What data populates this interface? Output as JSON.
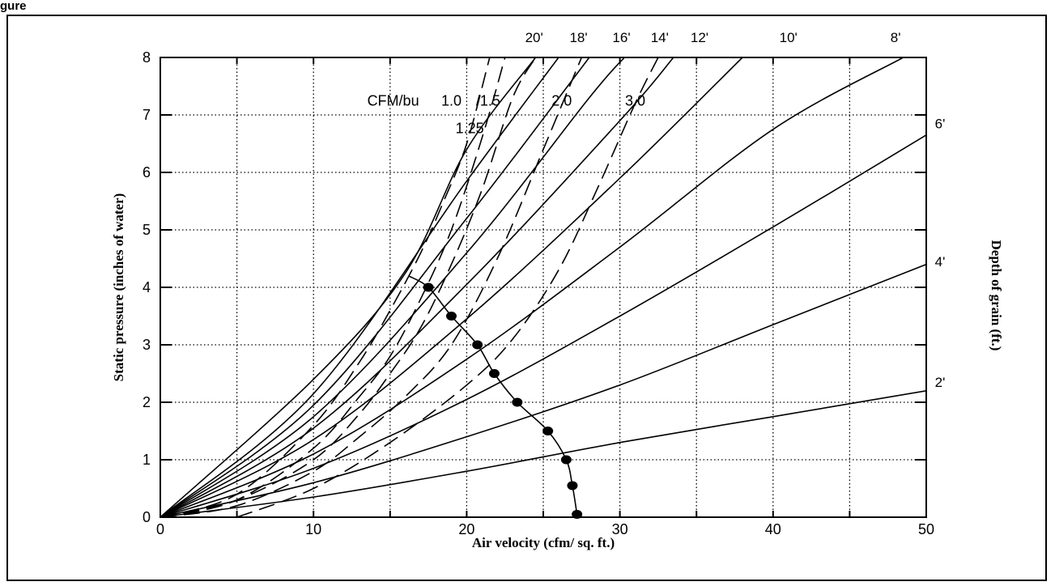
{
  "figure_label": "gure",
  "chart_data": {
    "type": "line",
    "xlabel": "Air velocity (cfm/ sq. ft.)",
    "ylabel": "Static pressure (inches of water)",
    "y2label": "Depth of grain (ft.)",
    "xlim": [
      0,
      50
    ],
    "ylim": [
      0,
      8
    ],
    "xticks": [
      0,
      10,
      20,
      30,
      40,
      50
    ],
    "yticks": [
      0,
      1,
      2,
      3,
      4,
      5,
      6,
      7,
      8
    ],
    "grid": true,
    "depth_series": [
      {
        "name": "2'",
        "depth": 2,
        "points": [
          [
            0,
            0
          ],
          [
            10,
            0.35
          ],
          [
            20,
            0.8
          ],
          [
            30,
            1.3
          ],
          [
            40,
            1.75
          ],
          [
            50,
            2.2
          ]
        ]
      },
      {
        "name": "4'",
        "depth": 4,
        "points": [
          [
            0,
            0
          ],
          [
            10,
            0.6
          ],
          [
            20,
            1.4
          ],
          [
            30,
            2.3
          ],
          [
            40,
            3.35
          ],
          [
            50,
            4.4
          ]
        ]
      },
      {
        "name": "6'",
        "depth": 6,
        "points": [
          [
            0,
            0
          ],
          [
            10,
            0.85
          ],
          [
            20,
            2.05
          ],
          [
            30,
            3.5
          ],
          [
            40,
            5.05
          ],
          [
            50,
            6.65
          ]
        ]
      },
      {
        "name": "8'",
        "depth": 8,
        "points": [
          [
            0,
            0
          ],
          [
            10,
            1.1
          ],
          [
            20,
            2.75
          ],
          [
            30,
            4.7
          ],
          [
            40,
            6.75
          ],
          [
            48.5,
            8
          ]
        ]
      },
      {
        "name": "10'",
        "depth": 10,
        "points": [
          [
            0,
            0
          ],
          [
            10,
            1.35
          ],
          [
            20,
            3.45
          ],
          [
            30,
            5.9
          ],
          [
            38,
            8
          ]
        ]
      },
      {
        "name": "12'",
        "depth": 12,
        "points": [
          [
            0,
            0
          ],
          [
            10,
            1.55
          ],
          [
            20,
            4.05
          ],
          [
            30,
            6.9
          ],
          [
            33.5,
            8
          ]
        ]
      },
      {
        "name": "14'",
        "depth": 14,
        "points": [
          [
            0,
            0
          ],
          [
            10,
            1.75
          ],
          [
            20,
            4.6
          ],
          [
            28,
            7.3
          ],
          [
            30.3,
            8
          ]
        ]
      },
      {
        "name": "16'",
        "depth": 16,
        "points": [
          [
            0,
            0
          ],
          [
            10,
            1.95
          ],
          [
            20,
            5.2
          ],
          [
            28,
            8
          ]
        ]
      },
      {
        "name": "18'",
        "depth": 18,
        "points": [
          [
            0,
            0
          ],
          [
            10,
            2.15
          ],
          [
            20,
            5.85
          ],
          [
            26,
            8
          ]
        ]
      },
      {
        "name": "20'",
        "depth": 20,
        "points": [
          [
            0,
            0
          ],
          [
            10,
            2.4
          ],
          [
            16,
            4.25
          ],
          [
            20,
            6.4
          ],
          [
            24.5,
            8
          ]
        ]
      }
    ],
    "depth_labels": [
      {
        "text": "20'",
        "x": 24.4,
        "y": 8.35
      },
      {
        "text": "18'",
        "x": 27.3,
        "y": 8.35
      },
      {
        "text": "16'",
        "x": 30.1,
        "y": 8.35
      },
      {
        "text": "14'",
        "x": 32.6,
        "y": 8.35
      },
      {
        "text": "12'",
        "x": 35.2,
        "y": 8.35
      },
      {
        "text": "10'",
        "x": 41.0,
        "y": 8.35
      },
      {
        "text": "8'",
        "x": 48.0,
        "y": 8.35
      },
      {
        "text": "6'",
        "x": 50.9,
        "y": 6.85
      },
      {
        "text": "4'",
        "x": 50.9,
        "y": 4.45
      },
      {
        "text": "2'",
        "x": 50.9,
        "y": 2.35
      }
    ],
    "cfm_series": [
      {
        "name": "1.0",
        "cfm_per_bu": 1.0,
        "points": [
          [
            0,
            0
          ],
          [
            5,
            0.4
          ],
          [
            10,
            1.6
          ],
          [
            13,
            2.7
          ],
          [
            15,
            3.6
          ],
          [
            17,
            4.6
          ],
          [
            18.5,
            5.5
          ],
          [
            20,
            6.5
          ],
          [
            21.5,
            8
          ]
        ]
      },
      {
        "name": "1.25",
        "cfm_per_bu": 1.25,
        "points": [
          [
            0,
            0
          ],
          [
            5,
            0.3
          ],
          [
            10,
            1.2
          ],
          [
            13,
            2.1
          ],
          [
            15,
            2.8
          ],
          [
            17,
            3.8
          ],
          [
            19,
            5.0
          ],
          [
            21,
            6.6
          ],
          [
            22.5,
            8
          ]
        ]
      },
      {
        "name": "1.5",
        "cfm_per_bu": 1.5,
        "points": [
          [
            0,
            0
          ],
          [
            5,
            0.3
          ],
          [
            10,
            1.0
          ],
          [
            13,
            1.8
          ],
          [
            15,
            2.5
          ],
          [
            17,
            3.3
          ],
          [
            19,
            4.4
          ],
          [
            21,
            5.7
          ],
          [
            23,
            7.3
          ],
          [
            24.5,
            8
          ]
        ]
      },
      {
        "name": "2.0",
        "cfm_per_bu": 2.0,
        "points": [
          [
            0,
            0
          ],
          [
            5,
            0.2
          ],
          [
            10,
            0.8
          ],
          [
            13,
            1.4
          ],
          [
            16,
            2.1
          ],
          [
            19,
            3.0
          ],
          [
            22,
            4.5
          ],
          [
            25,
            6.4
          ],
          [
            27.5,
            8
          ]
        ]
      },
      {
        "name": "3.0",
        "cfm_per_bu": 3.0,
        "points": [
          [
            5,
            0
          ],
          [
            10,
            0.5
          ],
          [
            15,
            1.3
          ],
          [
            20,
            2.3
          ],
          [
            23,
            3.1
          ],
          [
            26,
            4.3
          ],
          [
            28.5,
            5.7
          ],
          [
            31,
            7.2
          ],
          [
            32.5,
            8
          ]
        ]
      }
    ],
    "cfm_labels": [
      {
        "text": "CFM/bu",
        "x": 15.2,
        "y": 7.25
      },
      {
        "text": "1.0",
        "x": 19.0,
        "y": 7.25
      },
      {
        "text": "/1.5",
        "x": 21.4,
        "y": 7.25
      },
      {
        "text": "1.25",
        "x": 20.2,
        "y": 6.77
      },
      {
        "text": "2.0",
        "x": 26.2,
        "y": 7.25
      },
      {
        "text": "3.0",
        "x": 31.0,
        "y": 7.25
      }
    ],
    "marker_series": {
      "name": "",
      "points": [
        [
          16.2,
          4.2
        ],
        [
          17.5,
          4.0
        ],
        [
          19.0,
          3.5
        ],
        [
          20.7,
          3.0
        ],
        [
          21.8,
          2.5
        ],
        [
          23.3,
          2.0
        ],
        [
          25.3,
          1.5
        ],
        [
          26.5,
          1.0
        ],
        [
          26.9,
          0.55
        ],
        [
          27.2,
          0.05
        ]
      ],
      "markers": [
        [
          17.5,
          4.0
        ],
        [
          19.0,
          3.5
        ],
        [
          20.7,
          3.0
        ],
        [
          21.8,
          2.5
        ],
        [
          23.3,
          2.0
        ],
        [
          25.3,
          1.5
        ],
        [
          26.5,
          1.0
        ],
        [
          26.9,
          0.55
        ],
        [
          27.2,
          0.05
        ]
      ]
    }
  }
}
